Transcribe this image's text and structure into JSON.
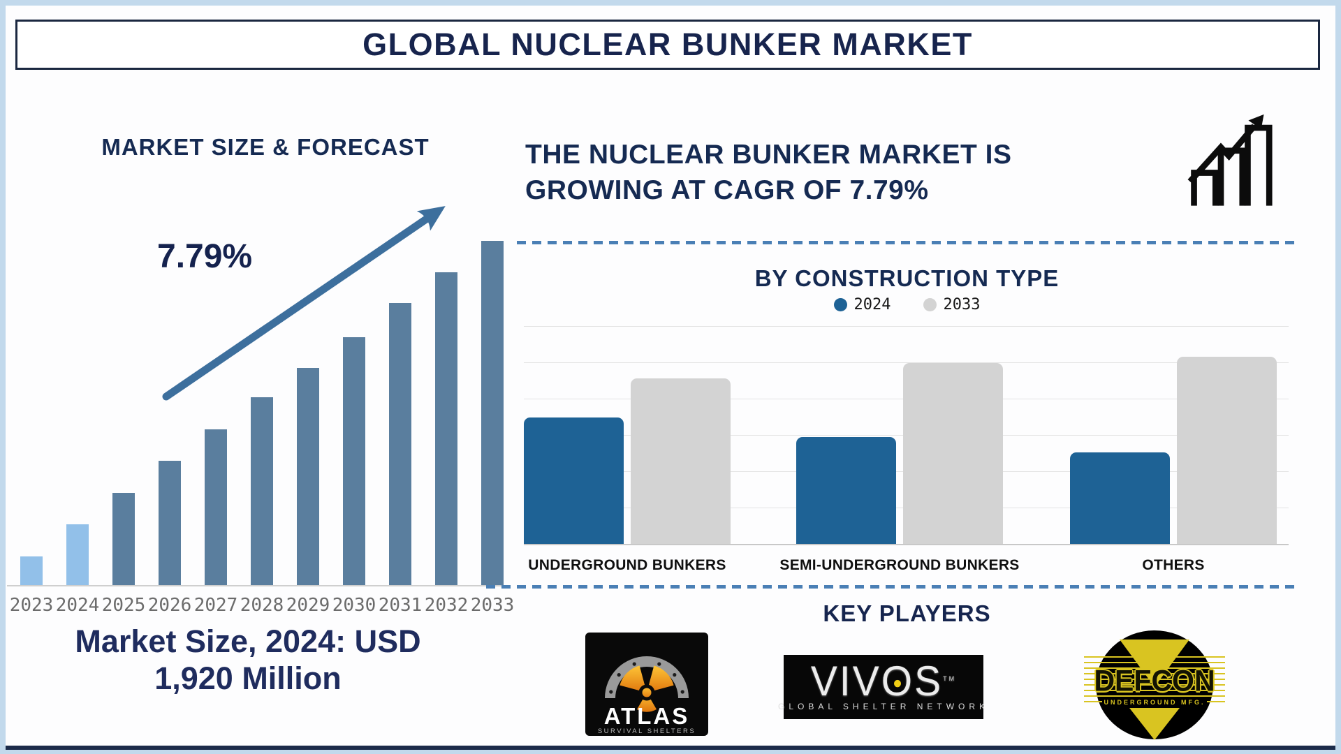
{
  "title": "GLOBAL NUCLEAR BUNKER MARKET",
  "left_panel": {
    "heading": "MARKET SIZE & FORECAST",
    "growth_label": "7.79%",
    "market_size_line1": "Market Size, 2024: USD",
    "market_size_line2": "1,920 Million"
  },
  "right_panel": {
    "headline_line1": "THE NUCLEAR BUNKER MARKET IS",
    "headline_line2": "GROWING AT CAGR OF 7.79%",
    "by_construction": {
      "heading": "BY CONSTRUCTION TYPE",
      "legend": [
        {
          "label": "2024",
          "color": "#1e6295"
        },
        {
          "label": "2033",
          "color": "#d3d3d3"
        }
      ]
    },
    "key_players": {
      "heading": "KEY PLAYERS",
      "players": [
        {
          "name": "ATLAS",
          "subtitle": "SURVIVAL SHELTERS"
        },
        {
          "name": "VIVOS",
          "subtitle": "GLOBAL SHELTER NETWORK",
          "tm": "TM"
        },
        {
          "name": "DEFCON",
          "subtitle": "UNDERGROUND MFG."
        }
      ]
    }
  },
  "colors": {
    "navy_text": "#152a52",
    "frame_blue": "#c2d9ec",
    "divider_blue": "#4a7fb5",
    "arrow_steel_blue": "#3d6f9d",
    "axis_gray": "#cfcfcf"
  },
  "chart_data": [
    {
      "type": "bar",
      "title": "MARKET SIZE & FORECAST",
      "categories": [
        "2023",
        "2024",
        "2025",
        "2026",
        "2027",
        "2028",
        "2029",
        "2030",
        "2031",
        "2032",
        "2033"
      ],
      "values_pct_of_max": [
        8.3,
        17.6,
        26.8,
        36.1,
        45.2,
        54.6,
        63.1,
        72.0,
        81.9,
        90.9,
        100
      ],
      "anchor_value": {
        "year": "2024",
        "value_usd_million": 1920,
        "label": "Market Size, 2024: USD 1,920 Million"
      },
      "cagr_pct": 7.79,
      "annotation": "7.79%",
      "light_blue_years": [
        "2023",
        "2024"
      ],
      "colors": {
        "historical": "#92c0e9",
        "forecast": "#5a7e9e"
      },
      "axis": "no numeric y-axis shown (pictogram-style growth bars)",
      "legend_position": "none",
      "grid": false
    },
    {
      "type": "bar",
      "title": "BY CONSTRUCTION TYPE",
      "categories": [
        "UNDERGROUND BUNKERS",
        "SEMI-UNDERGROUND BUNKERS",
        "OTHERS"
      ],
      "series": [
        {
          "name": "2024",
          "color": "#1e6295",
          "values_pct_of_plot_height": [
            58,
            49,
            42
          ]
        },
        {
          "name": "2033",
          "color": "#d3d3d3",
          "values_pct_of_plot_height": [
            76,
            83,
            86
          ]
        }
      ],
      "axis": "no numeric y-axis labels shown",
      "grid": true,
      "gridline_count": 7,
      "legend_position": "top-center"
    }
  ]
}
